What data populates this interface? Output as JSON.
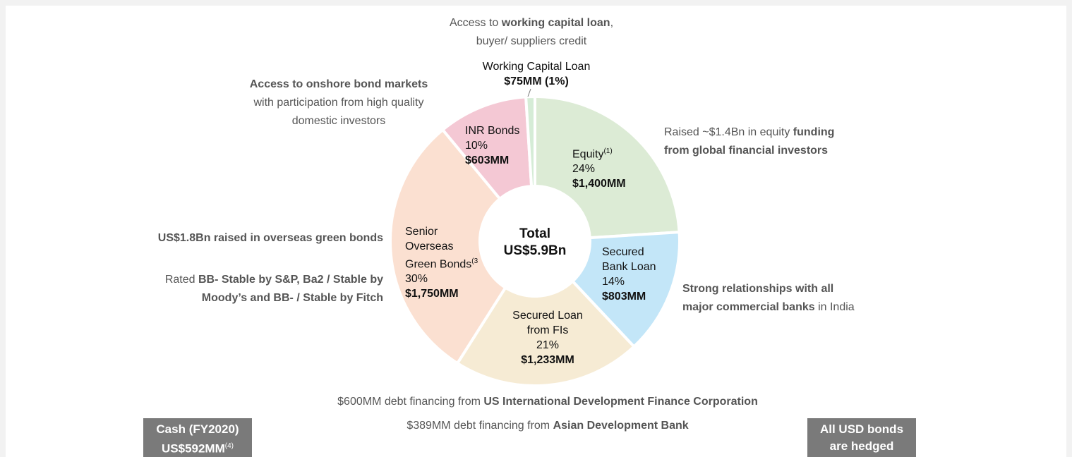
{
  "chart_data": {
    "type": "pie",
    "donut": true,
    "values": [
      24,
      14,
      21,
      30,
      10,
      1
    ],
    "colors": [
      "#dcebd5",
      "#c3e6f8",
      "#f6ebd4",
      "#fbe0d1",
      "#f4c8d4",
      "#d5ecd6"
    ],
    "labels": [
      [
        "Equity",
        "24%",
        "$1,400MM"
      ],
      [
        "Secured",
        "Bank Loan",
        "14%",
        "$803MM"
      ],
      [
        "Secured Loan",
        "from FIs",
        "21%",
        "$1,233MM"
      ],
      [
        "Senior",
        "Overseas",
        "Green Bonds",
        "30%",
        "$1,750MM"
      ],
      [
        "INR Bonds",
        "10%",
        "$603MM"
      ],
      [
        "Working Capital Loan",
        "$75MM (1%)"
      ]
    ],
    "notes": {
      "0": "(1)",
      "3": "(3"
    },
    "center_label": [
      "Total",
      "US$5.9Bn"
    ],
    "annotations": [
      [
        [
          {
            "text": "Access to "
          },
          {
            "text": "working capital loan",
            "bold": true
          },
          {
            "text": ","
          }
        ],
        [
          {
            "text": "buyer/ suppliers credit"
          }
        ]
      ],
      [
        [
          {
            "text": "Access to onshore bond markets",
            "bold": true
          }
        ],
        [
          {
            "text": "with participation from high quality"
          }
        ],
        [
          {
            "text": "domestic investors"
          }
        ]
      ],
      [
        [
          {
            "text": "Raised ~$1.4Bn in equity "
          },
          {
            "text": "funding",
            "bold": true
          }
        ],
        [
          {
            "text": "from global financial investors",
            "bold": true
          }
        ]
      ],
      [
        [
          {
            "text": "US$1.8Bn raised in overseas green bonds",
            "bold": true
          }
        ]
      ],
      [
        [
          {
            "text": "Rated "
          },
          {
            "text": "BB- Stable by S&P, Ba2 / Stable by",
            "bold": true
          }
        ],
        [
          {
            "text": "Moody’s and BB- / Stable by Fitch",
            "bold": true
          }
        ]
      ],
      [
        [
          {
            "text": "Strong relationships with all",
            "bold": true
          }
        ],
        [
          {
            "text": "major commercial banks",
            "bold": true
          },
          {
            "text": " in India"
          }
        ]
      ],
      [
        [
          {
            "text": "$600MM debt financing from "
          },
          {
            "text": "US International Development Finance Corporation",
            "bold": true
          }
        ]
      ],
      [
        [
          {
            "text": "$389MM debt financing from "
          },
          {
            "text": "Asian Development Bank",
            "bold": true
          }
        ]
      ]
    ],
    "boxes": [
      {
        "lines": [
          "Cash (FY2020)",
          "US$592MM"
        ],
        "note": "(4)"
      },
      {
        "lines": [
          "All USD bonds",
          "are hedged"
        ]
      }
    ]
  }
}
